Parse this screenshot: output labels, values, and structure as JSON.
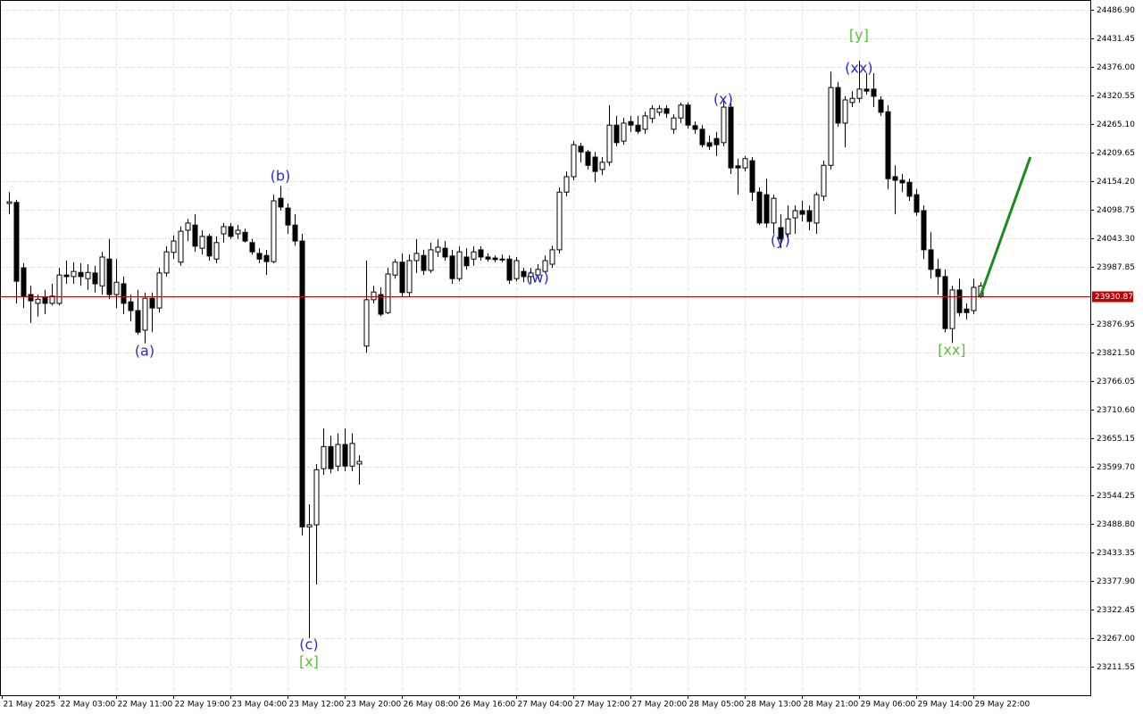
{
  "chart_data": {
    "type": "candlestick",
    "grid": true,
    "up_color": "#ffffff",
    "down_color": "#000000",
    "wick_color": "#000000",
    "ylim": [
      23156.1,
      24506.0
    ],
    "xlim": [
      -1.25,
      151.4
    ],
    "yticks": [
      {
        "value": 24486.9,
        "label": "24486.90"
      },
      {
        "value": 24431.45,
        "label": "24431.45"
      },
      {
        "value": 24376,
        "label": "24376.00"
      },
      {
        "value": 24320.55,
        "label": "24320.55"
      },
      {
        "value": 24265.1,
        "label": "24265.10"
      },
      {
        "value": 24209.65,
        "label": "24209.65"
      },
      {
        "value": 24154.2,
        "label": "24154.20"
      },
      {
        "value": 24098.75,
        "label": "24098.75"
      },
      {
        "value": 24043.3,
        "label": "24043.30"
      },
      {
        "value": 23987.85,
        "label": "23987.85"
      },
      {
        "value": 23876.95,
        "label": "23876.95"
      },
      {
        "value": 23821.5,
        "label": "23821.50"
      },
      {
        "value": 23766.05,
        "label": "23766.05"
      },
      {
        "value": 23710.6,
        "label": "23710.60"
      },
      {
        "value": 23655.15,
        "label": "23655.15"
      },
      {
        "value": 23599.7,
        "label": "23599.70"
      },
      {
        "value": 23544.25,
        "label": "23544.25"
      },
      {
        "value": 23488.8,
        "label": "23488.80"
      },
      {
        "value": 23433.35,
        "label": "23433.35"
      },
      {
        "value": 23377.9,
        "label": "23377.90"
      },
      {
        "value": 23322.45,
        "label": "23322.45"
      },
      {
        "value": 23267,
        "label": "23267.00"
      },
      {
        "value": 23211.55,
        "label": "23211.55"
      }
    ],
    "xticks": [
      {
        "value": -1,
        "label": "21 May 2025"
      },
      {
        "value": 7,
        "label": "22 May 03:00"
      },
      {
        "value": 15,
        "label": "22 May 11:00"
      },
      {
        "value": 23,
        "label": "22 May 19:00"
      },
      {
        "value": 31,
        "label": "23 May 04:00"
      },
      {
        "value": 39,
        "label": "23 May 12:00"
      },
      {
        "value": 47,
        "label": "23 May 20:00"
      },
      {
        "value": 55,
        "label": "26 May 08:00"
      },
      {
        "value": 63,
        "label": "26 May 16:00"
      },
      {
        "value": 71,
        "label": "27 May 04:00"
      },
      {
        "value": 79,
        "label": "27 May 12:00"
      },
      {
        "value": 87,
        "label": "27 May 20:00"
      },
      {
        "value": 95,
        "label": "28 May 05:00"
      },
      {
        "value": 103,
        "label": "28 May 13:00"
      },
      {
        "value": 111,
        "label": "28 May 21:00"
      },
      {
        "value": 119,
        "label": "29 May 06:00"
      },
      {
        "value": 127,
        "label": "29 May 14:00"
      },
      {
        "value": 135,
        "label": "29 May 22:00"
      }
    ],
    "current_price": 23930.87,
    "current_price_color": "#c00000",
    "forecast": {
      "x": [
        136,
        143
      ],
      "values": [
        23930.87,
        24201
      ],
      "color": "#1e8a1e"
    },
    "annotations": [
      {
        "text": "[y]",
        "x": 119,
        "y": 24437,
        "color": "#5cbf3c"
      },
      {
        "text": "(xx)",
        "x": 119,
        "y": 24373,
        "color": "#2a2ad0"
      },
      {
        "text": "(x)",
        "x": 100,
        "y": 24312,
        "color": "#2a2ad0"
      },
      {
        "text": "(y)",
        "x": 108,
        "y": 24038,
        "color": "#2a2ad0"
      },
      {
        "text": "(w)",
        "x": 74,
        "y": 23965,
        "color": "#2a2ad0"
      },
      {
        "text": "(a)",
        "x": 19,
        "y": 23823,
        "color": "#2a2ad0"
      },
      {
        "text": "(b)",
        "x": 38,
        "y": 24163,
        "color": "#2a2ad0"
      },
      {
        "text": "(c)",
        "x": 42,
        "y": 23253,
        "color": "#2a2ad0"
      },
      {
        "text": "[x]",
        "x": 42,
        "y": 23220,
        "color": "#5cbf3c"
      },
      {
        "text": "[xx]",
        "x": 132,
        "y": 23825,
        "color": "#5cbf3c"
      }
    ],
    "candles": [
      [
        24111,
        24133,
        24090,
        24114
      ],
      [
        24113,
        24118,
        23917,
        23960
      ],
      [
        23986,
        23995,
        23908,
        23931
      ],
      [
        23934,
        23951,
        23879,
        23922
      ],
      [
        23917,
        23934,
        23891,
        23925
      ],
      [
        23929,
        23943,
        23896,
        23917
      ],
      [
        23917,
        23955,
        23913,
        23931
      ],
      [
        23917,
        23986,
        23913,
        23972
      ],
      [
        23972,
        24000,
        23955,
        23969
      ],
      [
        23969,
        23997,
        23955,
        23979
      ],
      [
        23977,
        23995,
        23951,
        23969
      ],
      [
        23965,
        23993,
        23943,
        23977
      ],
      [
        23976,
        23990,
        23938,
        23955
      ],
      [
        23951,
        24017,
        23934,
        24007
      ],
      [
        24003,
        24042,
        23925,
        23934
      ],
      [
        23934,
        24003,
        23908,
        23958
      ],
      [
        23955,
        23969,
        23896,
        23917
      ],
      [
        23920,
        23934,
        23882,
        23903
      ],
      [
        23903,
        23943,
        23856,
        23861
      ],
      [
        23865,
        23938,
        23839,
        23927
      ],
      [
        23927,
        23938,
        23861,
        23908
      ],
      [
        23908,
        23986,
        23899,
        23976
      ],
      [
        23976,
        24028,
        23969,
        24017
      ],
      [
        24016,
        24049,
        24003,
        24038
      ],
      [
        23997,
        24066,
        23990,
        24057
      ],
      [
        24059,
        24081,
        24038,
        24073
      ],
      [
        24069,
        24090,
        24017,
        24028
      ],
      [
        24024,
        24059,
        24012,
        24047
      ],
      [
        24047,
        24052,
        24000,
        24009
      ],
      [
        24003,
        24047,
        23995,
        24035
      ],
      [
        24052,
        24073,
        24035,
        24066
      ],
      [
        24066,
        24073,
        24042,
        24047
      ],
      [
        24052,
        24069,
        24042,
        24059
      ],
      [
        24055,
        24062,
        24035,
        24038
      ],
      [
        24035,
        24042,
        24012,
        24017
      ],
      [
        24014,
        24024,
        23995,
        24003
      ],
      [
        24010,
        24021,
        23972,
        23998
      ],
      [
        23998,
        24128,
        23995,
        24116
      ],
      [
        24121,
        24145,
        24097,
        24104
      ],
      [
        24102,
        24111,
        24052,
        24069
      ],
      [
        24069,
        24090,
        24029,
        24038
      ],
      [
        24038,
        24052,
        23466,
        23483
      ],
      [
        23483,
        23527,
        23267,
        23487
      ],
      [
        23487,
        23605,
        23371,
        23594
      ],
      [
        23596,
        23674,
        23584,
        23639
      ],
      [
        23639,
        23660,
        23587,
        23596
      ],
      [
        23601,
        23665,
        23591,
        23643
      ],
      [
        23643,
        23674,
        23591,
        23601
      ],
      [
        23601,
        23665,
        23591,
        23645
      ],
      [
        23605,
        23622,
        23565,
        23610
      ],
      [
        23834,
        24000,
        23821,
        23924
      ],
      [
        23924,
        23951,
        23917,
        23939
      ],
      [
        23934,
        23948,
        23892,
        23896
      ],
      [
        23899,
        23986,
        23896,
        23974
      ],
      [
        23972,
        24003,
        23965,
        23997
      ],
      [
        23997,
        24014,
        23931,
        23938
      ],
      [
        23938,
        24012,
        23929,
        24000
      ],
      [
        24000,
        24042,
        23976,
        24014
      ],
      [
        24010,
        24021,
        23972,
        23981
      ],
      [
        23981,
        24035,
        23976,
        24021
      ],
      [
        24017,
        24042,
        24007,
        24026
      ],
      [
        24024,
        24038,
        24000,
        24007
      ],
      [
        24009,
        24021,
        23955,
        23965
      ],
      [
        23965,
        24028,
        23960,
        24017
      ],
      [
        24007,
        24024,
        23983,
        23990
      ],
      [
        24003,
        24028,
        23990,
        24017
      ],
      [
        24021,
        24028,
        24000,
        24007
      ],
      [
        24007,
        24014,
        23998,
        24003
      ],
      [
        24005,
        24010,
        23997,
        24002
      ],
      [
        24003,
        24012,
        23997,
        24002
      ],
      [
        24003,
        24010,
        23955,
        23962
      ],
      [
        23965,
        24007,
        23960,
        24000
      ],
      [
        23979,
        23986,
        23958,
        23969
      ],
      [
        23969,
        23986,
        23955,
        23976
      ],
      [
        23972,
        23993,
        23965,
        23983
      ],
      [
        23979,
        24010,
        23976,
        24000
      ],
      [
        23993,
        24029,
        23986,
        24021
      ],
      [
        24021,
        24142,
        24014,
        24133
      ],
      [
        24133,
        24173,
        24125,
        24163
      ],
      [
        24163,
        24232,
        24156,
        24225
      ],
      [
        24222,
        24229,
        24191,
        24211
      ],
      [
        24211,
        24215,
        24177,
        24185
      ],
      [
        24201,
        24211,
        24152,
        24173
      ],
      [
        24177,
        24201,
        24166,
        24191
      ],
      [
        24191,
        24302,
        24184,
        24263
      ],
      [
        24263,
        24281,
        24222,
        24229
      ],
      [
        24232,
        24277,
        24225,
        24267
      ],
      [
        24270,
        24281,
        24250,
        24263
      ],
      [
        24263,
        24281,
        24246,
        24251
      ],
      [
        24255,
        24289,
        24246,
        24281
      ],
      [
        24276,
        24302,
        24267,
        24295
      ],
      [
        24288,
        24302,
        24281,
        24295
      ],
      [
        24295,
        24302,
        24277,
        24286
      ],
      [
        24255,
        24284,
        24246,
        24277
      ],
      [
        24277,
        24307,
        24267,
        24302
      ],
      [
        24302,
        24307,
        24256,
        24263
      ],
      [
        24262,
        24270,
        24246,
        24255
      ],
      [
        24255,
        24263,
        24220,
        24225
      ],
      [
        24229,
        24243,
        24215,
        24222
      ],
      [
        24237,
        24250,
        24203,
        24225
      ],
      [
        24229,
        24315,
        24222,
        24298
      ],
      [
        24298,
        24305,
        24168,
        24180
      ],
      [
        24184,
        24198,
        24128,
        24180
      ],
      [
        24180,
        24203,
        24173,
        24198
      ],
      [
        24194,
        24201,
        24116,
        24133
      ],
      [
        24133,
        24142,
        24069,
        24073
      ],
      [
        24128,
        24159,
        24064,
        24073
      ],
      [
        24073,
        24128,
        24052,
        24121
      ],
      [
        24064,
        24090,
        24024,
        24042
      ],
      [
        24052,
        24107,
        24042,
        24081
      ],
      [
        24083,
        24107,
        24052,
        24097
      ],
      [
        24097,
        24116,
        24076,
        24090
      ],
      [
        24097,
        24107,
        24059,
        24076
      ],
      [
        24073,
        24133,
        24052,
        24128
      ],
      [
        24125,
        24194,
        24116,
        24185
      ],
      [
        24185,
        24367,
        24177,
        24336
      ],
      [
        24336,
        24347,
        24260,
        24267
      ],
      [
        24267,
        24319,
        24220,
        24312
      ],
      [
        24307,
        24329,
        24298,
        24315
      ],
      [
        24315,
        24388,
        24307,
        24333
      ],
      [
        24333,
        24364,
        24322,
        24329
      ],
      [
        24333,
        24364,
        24298,
        24319
      ],
      [
        24312,
        24319,
        24281,
        24288
      ],
      [
        24289,
        24302,
        24139,
        24159
      ],
      [
        24163,
        24185,
        24090,
        24156
      ],
      [
        24156,
        24168,
        24133,
        24151
      ],
      [
        24152,
        24159,
        24116,
        24125
      ],
      [
        24128,
        24139,
        24087,
        24094
      ],
      [
        24097,
        24107,
        24003,
        24021
      ],
      [
        24021,
        24055,
        23965,
        23983
      ],
      [
        23983,
        24003,
        23934,
        23969
      ],
      [
        23969,
        23983,
        23861,
        23868
      ],
      [
        23868,
        23951,
        23840,
        23943
      ],
      [
        23943,
        23965,
        23892,
        23899
      ],
      [
        23906,
        23917,
        23886,
        23899
      ],
      [
        23903,
        23965,
        23896,
        23948
      ],
      [
        23931,
        23958,
        23927,
        23951
      ]
    ]
  }
}
